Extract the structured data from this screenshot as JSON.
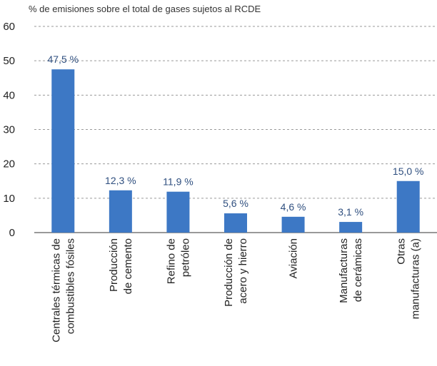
{
  "chart_data": {
    "type": "bar",
    "ylabel": "% de emisiones sobre el total de gases sujetos al RCDE",
    "ylim": [
      0,
      60
    ],
    "yticks": [
      0,
      10,
      20,
      30,
      40,
      50,
      60
    ],
    "grid": true,
    "categories": [
      [
        "Centrales térmicas de",
        "combustibles fósiles"
      ],
      [
        "Producción",
        "de cemento"
      ],
      [
        "Refino de",
        "petróleo"
      ],
      [
        "Producción de",
        "acero y hierro"
      ],
      [
        "Aviación"
      ],
      [
        "Manufacturas",
        "de cerámicas"
      ],
      [
        "Otras",
        "manufacturas (a)"
      ]
    ],
    "values": [
      47.5,
      12.3,
      11.9,
      5.6,
      4.6,
      3.1,
      15.0
    ],
    "data_labels": [
      "47,5 %",
      "12,3 %",
      "11,9 %",
      "5,6 %",
      "4,6 %",
      "3,1 %",
      "15,0 %"
    ],
    "bar_color": "#3d78c5"
  }
}
